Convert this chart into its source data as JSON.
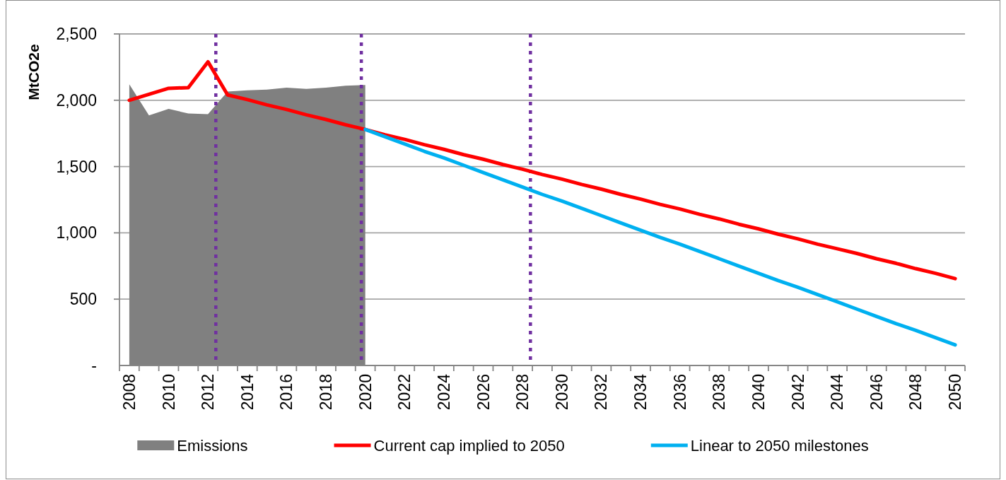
{
  "chart_data": {
    "type": "line",
    "ylabel": "MtCO2e",
    "xlim": [
      2007.5,
      2050.5
    ],
    "xticks": [
      2008,
      2010,
      2012,
      2014,
      2016,
      2018,
      2020,
      2022,
      2024,
      2026,
      2028,
      2030,
      2032,
      2034,
      2036,
      2038,
      2040,
      2042,
      2044,
      2046,
      2048,
      2050,
      {
        "value": 2007.5,
        "label": null
      },
      {
        "value": 2008.5,
        "label": null
      },
      {
        "value": 2009.5,
        "label": null
      },
      {
        "value": 2010.5,
        "label": null
      },
      {
        "value": 2011.5,
        "label": null
      },
      {
        "value": 2012.5,
        "label": null
      },
      {
        "value": 2013.5,
        "label": null
      },
      {
        "value": 2014.5,
        "label": null
      },
      {
        "value": 2015.5,
        "label": null
      },
      {
        "value": 2016.5,
        "label": null
      },
      {
        "value": 2017.5,
        "label": null
      },
      {
        "value": 2018.5,
        "label": null
      },
      {
        "value": 2019.5,
        "label": null
      },
      {
        "value": 2020.5,
        "label": null
      },
      {
        "value": 2021.5,
        "label": null
      },
      {
        "value": 2022.5,
        "label": null
      },
      {
        "value": 2023.5,
        "label": null
      },
      {
        "value": 2024.5,
        "label": null
      },
      {
        "value": 2025.5,
        "label": null
      },
      {
        "value": 2026.5,
        "label": null
      },
      {
        "value": 2027.5,
        "label": null
      },
      {
        "value": 2028.5,
        "label": null
      },
      {
        "value": 2029.5,
        "label": null
      },
      {
        "value": 2030.5,
        "label": null
      },
      {
        "value": 2031.5,
        "label": null
      },
      {
        "value": 2032.5,
        "label": null
      },
      {
        "value": 2033.5,
        "label": null
      },
      {
        "value": 2034.5,
        "label": null
      },
      {
        "value": 2035.5,
        "label": null
      },
      {
        "value": 2036.5,
        "label": null
      },
      {
        "value": 2037.5,
        "label": null
      },
      {
        "value": 2038.5,
        "label": null
      },
      {
        "value": 2039.5,
        "label": null
      },
      {
        "value": 2040.5,
        "label": null
      },
      {
        "value": 2041.5,
        "label": null
      },
      {
        "value": 2042.5,
        "label": null
      },
      {
        "value": 2043.5,
        "label": null
      },
      {
        "value": 2044.5,
        "label": null
      },
      {
        "value": 2045.5,
        "label": null
      },
      {
        "value": 2046.5,
        "label": null
      },
      {
        "value": 2047.5,
        "label": null
      },
      {
        "value": 2048.5,
        "label": null
      },
      {
        "value": 2049.5,
        "label": null
      },
      {
        "value": 2050.5,
        "label": null
      }
    ],
    "ylim": [
      0,
      2500
    ],
    "yticks": [
      {
        "value": 0,
        "label": "-"
      },
      500,
      {
        "value": 1000,
        "label": "1,000"
      },
      {
        "value": 1500,
        "label": "1,500"
      },
      {
        "value": 2000,
        "label": "2,000"
      },
      {
        "value": 2500,
        "label": "2,500"
      }
    ],
    "grid": "y",
    "legend": "bottom",
    "series": [
      {
        "name": "Emissions",
        "type": "area",
        "color": "#808080",
        "x": [
          2008,
          2009,
          2010,
          2011,
          2012,
          2013,
          2014,
          2015,
          2016,
          2017,
          2018,
          2019,
          2020
        ],
        "values": [
          2120,
          1885,
          1935,
          1900,
          1895,
          2065,
          2075,
          2080,
          2095,
          2085,
          2095,
          2110,
          2115
        ]
      },
      {
        "name": "Current cap implied to 2050",
        "color": "#ff0000",
        "x": [
          2008,
          2009,
          2010,
          2011,
          2012,
          2013,
          2014,
          2015,
          2016,
          2017,
          2018,
          2019,
          2020,
          2021,
          2022,
          2023,
          2024,
          2025,
          2026,
          2027,
          2028,
          2029,
          2030,
          2031,
          2032,
          2033,
          2034,
          2035,
          2036,
          2037,
          2038,
          2039,
          2040,
          2041,
          2042,
          2043,
          2044,
          2045,
          2046,
          2047,
          2048,
          2049,
          2050
        ],
        "values": [
          2000,
          2045,
          2090,
          2095,
          2290,
          2040,
          2005,
          1965,
          1930,
          1890,
          1855,
          1815,
          1780,
          1740,
          1705,
          1665,
          1630,
          1590,
          1555,
          1515,
          1480,
          1440,
          1405,
          1365,
          1330,
          1290,
          1255,
          1215,
          1180,
          1140,
          1105,
          1065,
          1030,
          990,
          955,
          915,
          880,
          845,
          805,
          770,
          730,
          695,
          655
        ]
      },
      {
        "name": "Linear to 2050 milestones",
        "color": "#00b0f0",
        "x": [
          2020,
          2021,
          2022,
          2023,
          2024,
          2025,
          2026,
          2027,
          2028,
          2029,
          2030,
          2031,
          2032,
          2033,
          2034,
          2035,
          2036,
          2037,
          2038,
          2039,
          2040,
          2041,
          2042,
          2043,
          2044,
          2045,
          2046,
          2047,
          2048,
          2049,
          2050
        ],
        "values": [
          1780,
          1725,
          1670,
          1615,
          1565,
          1510,
          1455,
          1400,
          1345,
          1290,
          1240,
          1185,
          1130,
          1075,
          1020,
          965,
          915,
          860,
          805,
          750,
          695,
          640,
          590,
          535,
          480,
          425,
          370,
          315,
          265,
          210,
          155
        ]
      }
    ],
    "ref_lines": [
      {
        "axis": "x",
        "value": 2012.4,
        "color": "#7030a0",
        "line_style": "dotted"
      },
      {
        "axis": "x",
        "value": 2019.8,
        "color": "#7030a0",
        "line_style": "dotted"
      },
      {
        "axis": "x",
        "value": 2028.4,
        "color": "#7030a0",
        "line_style": "dotted"
      }
    ]
  }
}
